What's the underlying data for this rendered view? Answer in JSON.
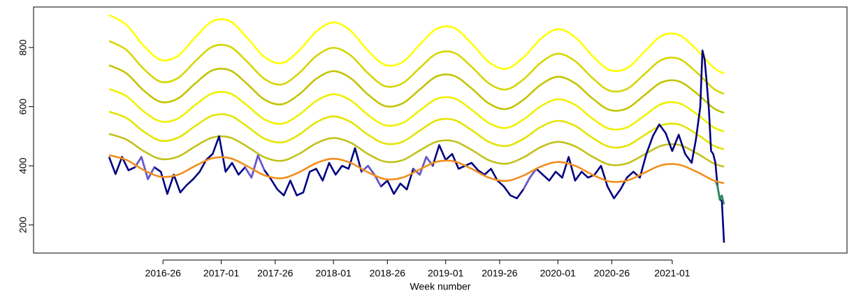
{
  "chart_data": {
    "type": "line",
    "xlabel": "Week number",
    "xlim": [
      -35,
      342
    ],
    "ylim": [
      105,
      937
    ],
    "xticks": [
      {
        "value": 25,
        "label": "2016-26"
      },
      {
        "value": 52,
        "label": "2017-01"
      },
      {
        "value": 77,
        "label": "2017-26"
      },
      {
        "value": 104,
        "label": "2018-01"
      },
      {
        "value": 129,
        "label": "2018-26"
      },
      {
        "value": 156,
        "label": "2019-01"
      },
      {
        "value": 181,
        "label": "2019-26"
      },
      {
        "value": 208,
        "label": "2020-01"
      },
      {
        "value": 233,
        "label": "2020-26"
      },
      {
        "value": 261,
        "label": "2021-01"
      }
    ],
    "yticks": [
      200,
      400,
      600,
      800
    ],
    "x": [
      0,
      8,
      16,
      24,
      32,
      40,
      48,
      56,
      64,
      72,
      80,
      88,
      96,
      104,
      112,
      120,
      128,
      136,
      144,
      152,
      160,
      168,
      176,
      184,
      192,
      200,
      208,
      216,
      224,
      232,
      240,
      248,
      256,
      264,
      272,
      280,
      285
    ],
    "series": [
      {
        "color": "#ffff00",
        "smooth": true,
        "values": [
          910,
          877,
          806,
          758,
          772,
          835,
          889,
          889,
          833,
          768,
          747,
          789,
          854,
          885,
          856,
          789,
          741,
          751,
          810,
          864,
          866,
          814,
          751,
          728,
          766,
          829,
          862,
          835,
          772,
          724,
          730,
          785,
          839,
          843,
          795,
          733,
          712
        ]
      },
      {
        "color": "#d6d600",
        "smooth": true,
        "values": [
          822,
          792,
          728,
          684,
          697,
          754,
          803,
          803,
          752,
          694,
          675,
          713,
          771,
          799,
          773,
          713,
          669,
          679,
          731,
          780,
          782,
          735,
          679,
          658,
          692,
          748,
          779,
          754,
          697,
          654,
          660,
          709,
          758,
          762,
          718,
          662,
          643
        ]
      },
      {
        "color": "#c4c400",
        "smooth": true,
        "values": [
          740,
          713,
          655,
          616,
          628,
          679,
          723,
          723,
          677,
          624,
          608,
          641,
          694,
          720,
          696,
          641,
          602,
          611,
          658,
          703,
          704,
          662,
          611,
          592,
          623,
          674,
          701,
          679,
          628,
          589,
          594,
          638,
          682,
          686,
          647,
          596,
          579
        ]
      },
      {
        "color": "#f0f000",
        "smooth": true,
        "values": [
          660,
          636,
          584,
          550,
          560,
          606,
          645,
          645,
          604,
          557,
          542,
          572,
          619,
          642,
          621,
          572,
          537,
          545,
          587,
          627,
          628,
          590,
          545,
          528,
          556,
          601,
          625,
          606,
          560,
          525,
          530,
          569,
          609,
          612,
          577,
          531,
          516
        ]
      },
      {
        "color": "#e4e400",
        "smooth": true,
        "values": [
          583,
          562,
          516,
          485,
          495,
          535,
          570,
          570,
          533,
          492,
          479,
          505,
          547,
          567,
          548,
          505,
          475,
          481,
          519,
          554,
          555,
          521,
          481,
          467,
          491,
          531,
          552,
          535,
          495,
          464,
          468,
          503,
          537,
          540,
          509,
          469,
          456
        ]
      },
      {
        "color": "#c2c21a",
        "smooth": true,
        "values": [
          508,
          489,
          450,
          423,
          431,
          466,
          496,
          496,
          465,
          429,
          417,
          440,
          476,
          494,
          478,
          440,
          414,
          419,
          452,
          482,
          483,
          454,
          419,
          407,
          428,
          463,
          481,
          466,
          431,
          404,
          408,
          438,
          468,
          471,
          444,
          409,
          397
        ]
      },
      {
        "color": "#000080",
        "x": [
          0,
          3,
          6,
          9,
          12,
          15,
          18,
          21,
          24,
          27,
          30,
          33,
          36,
          39,
          42,
          45,
          48,
          51,
          54,
          57,
          60,
          63,
          66,
          69,
          72,
          75,
          78,
          81,
          84,
          87,
          90,
          93,
          96,
          99,
          102,
          105,
          108,
          111,
          114,
          117,
          120,
          123,
          126,
          129,
          132,
          135,
          138,
          141,
          144,
          147,
          150,
          153,
          156,
          159,
          162,
          165,
          168,
          171,
          174,
          177,
          180,
          183,
          186,
          189,
          192,
          195,
          198,
          201,
          204,
          207,
          210,
          213,
          216,
          219,
          222,
          225,
          228,
          231,
          234,
          237,
          240,
          243,
          246,
          249,
          252,
          255,
          258,
          261,
          264,
          267,
          270,
          272,
          274,
          275,
          276,
          277,
          278,
          279,
          280,
          281,
          282,
          283,
          284,
          285
        ],
        "values": [
          430,
          372,
          430,
          385,
          395,
          430,
          355,
          395,
          380,
          305,
          370,
          310,
          335,
          355,
          380,
          420,
          440,
          500,
          380,
          410,
          370,
          395,
          360,
          435,
          385,
          355,
          320,
          300,
          350,
          300,
          310,
          380,
          390,
          350,
          410,
          370,
          400,
          390,
          460,
          380,
          400,
          370,
          330,
          350,
          305,
          340,
          320,
          390,
          370,
          430,
          400,
          470,
          420,
          440,
          390,
          400,
          410,
          385,
          370,
          390,
          350,
          330,
          300,
          290,
          320,
          360,
          390,
          370,
          350,
          380,
          360,
          430,
          350,
          380,
          360,
          370,
          400,
          330,
          290,
          320,
          360,
          380,
          360,
          440,
          500,
          540,
          510,
          450,
          505,
          440,
          410,
          490,
          600,
          790,
          760,
          680,
          590,
          450,
          440,
          410,
          330,
          290,
          280,
          140
        ]
      },
      {
        "color": "#6a5acd",
        "x": [
          12,
          15,
          18,
          21
        ],
        "values": [
          395,
          430,
          355,
          395
        ]
      },
      {
        "color": "#6a5acd",
        "x": [
          63,
          66,
          69,
          72
        ],
        "values": [
          395,
          360,
          435,
          385
        ]
      },
      {
        "color": "#6a5acd",
        "x": [
          117,
          120,
          123,
          126
        ],
        "values": [
          380,
          400,
          370,
          330
        ]
      },
      {
        "color": "#6a5acd",
        "x": [
          141,
          144,
          147,
          150
        ],
        "values": [
          390,
          370,
          430,
          400
        ]
      },
      {
        "color": "#6a5acd",
        "x": [
          192,
          195,
          198
        ],
        "values": [
          320,
          360,
          390
        ]
      },
      {
        "color": "#2e8b57",
        "x": [
          281,
          282,
          283,
          284,
          285
        ],
        "values": [
          350,
          330,
          285,
          300,
          270
        ]
      },
      {
        "color": "#f28e1c",
        "smooth": true,
        "values": [
          436,
          420,
          386,
          363,
          370,
          400,
          426,
          426,
          399,
          368,
          358,
          378,
          409,
          424,
          410,
          378,
          355,
          360,
          388,
          414,
          415,
          390,
          360,
          349,
          367,
          397,
          413,
          400,
          370,
          347,
          350,
          376,
          402,
          404,
          381,
          351,
          341
        ]
      }
    ]
  }
}
